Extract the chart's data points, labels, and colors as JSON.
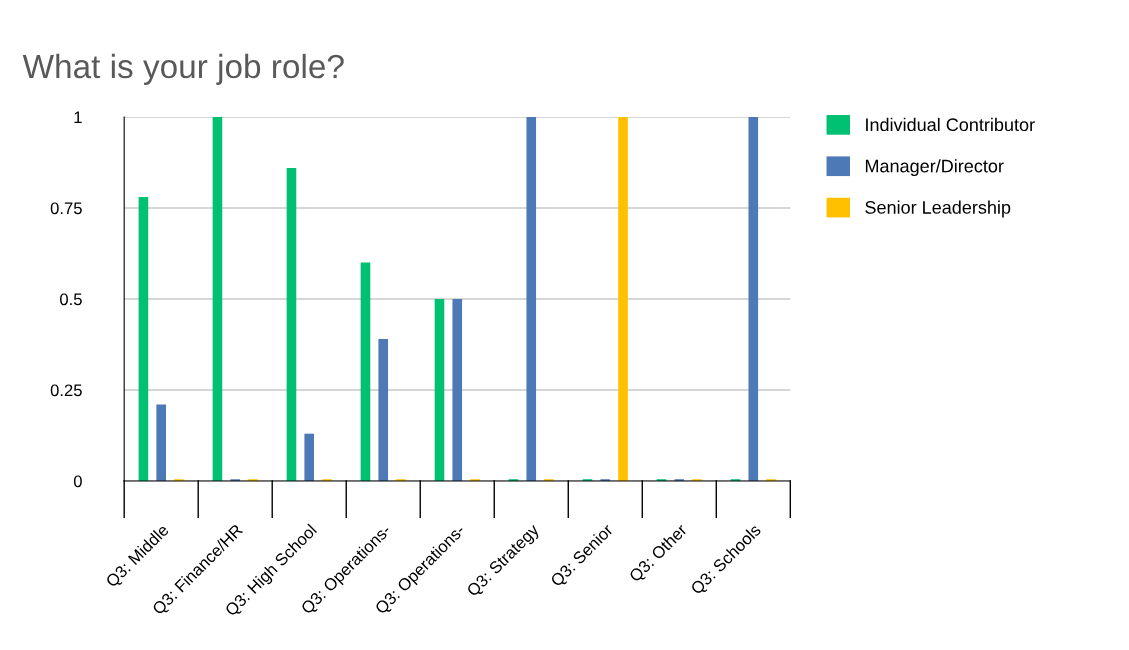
{
  "chart_data": {
    "type": "bar",
    "title": "What is your job role?",
    "categories": [
      "Q3: Middle",
      "Q3: Finance/HR",
      "Q3: High School",
      "Q3: Operations-",
      "Q3: Operations-",
      "Q3: Strategy",
      "Q3: Senior",
      "Q3: Other",
      "Q3: Schools"
    ],
    "series": [
      {
        "name": "Individual Contributor",
        "color": "#00c072",
        "values": [
          0.78,
          1,
          0.86,
          0.6,
          0.5,
          0,
          0,
          0,
          0
        ]
      },
      {
        "name": "Manager/Director",
        "color": "#4e79b7",
        "values": [
          0.21,
          0,
          0.13,
          0.39,
          0.5,
          1,
          0,
          0,
          1
        ]
      },
      {
        "name": "Senior Leadership",
        "color": "#ffc000",
        "values": [
          0,
          0,
          0,
          0,
          0,
          0,
          1,
          0,
          0
        ]
      }
    ],
    "ylim": [
      0,
      1
    ],
    "yticks": [
      0,
      0.25,
      0.5,
      0.75,
      1
    ],
    "grid": "y",
    "legend": "top right"
  }
}
